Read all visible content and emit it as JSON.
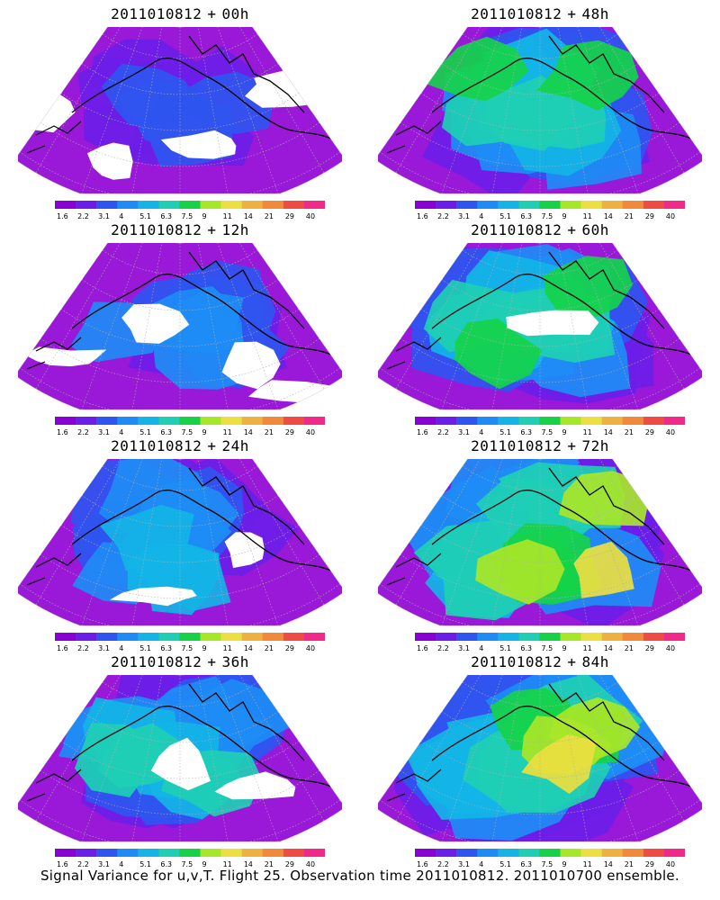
{
  "panels": [
    {
      "base": "2011010812",
      "plus": "+",
      "lead": "00h"
    },
    {
      "base": "2011010812",
      "plus": "+",
      "lead": "48h"
    },
    {
      "base": "2011010812",
      "plus": "+",
      "lead": "12h"
    },
    {
      "base": "2011010812",
      "plus": "+",
      "lead": "60h"
    },
    {
      "base": "2011010812",
      "plus": "+",
      "lead": "24h"
    },
    {
      "base": "2011010812",
      "plus": "+",
      "lead": "72h"
    },
    {
      "base": "2011010812",
      "plus": "+",
      "lead": "36h"
    },
    {
      "base": "2011010812",
      "plus": "+",
      "lead": "84h"
    }
  ],
  "colorbar": {
    "labels": [
      "1.6",
      "2.2",
      "3.1",
      "4",
      "5.1",
      "6.3",
      "7.5",
      "9",
      "11",
      "14",
      "21",
      "29",
      "40"
    ],
    "colors": [
      "#8a00d4",
      "#6b1ee8",
      "#2f55f0",
      "#1e8cf5",
      "#14b4e6",
      "#1ecfb4",
      "#16d24a",
      "#a8e628",
      "#ece040",
      "#f0b040",
      "#f08a3a",
      "#f04a44",
      "#f02a8a"
    ]
  },
  "colors": {
    "background": "#ffffff",
    "no_data": "#ffffff",
    "purple_base": "#9a18d8",
    "coastline": "#000000",
    "graticule": "#b0b0b0"
  },
  "caption": "Signal Variance for u,v,T. Flight 25. Observation time 2011010812. 2011010700 ensemble."
}
